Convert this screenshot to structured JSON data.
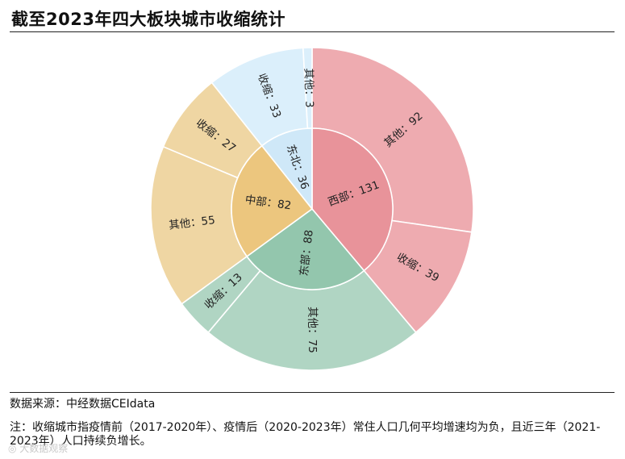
{
  "title": "截至2023年四大板块城市收缩统计",
  "source": "数据来源：中经数据CEIdata",
  "note": "注：收缩城市指疫情前（2017-2020年）、疫情后（2020-2023年）常住人口几何平均增速均为负，且近三年（2021-2023年）人口持续负增长。",
  "watermark": "◎ 大数据观察",
  "colors": {
    "西部": {
      "inner": "#e8939a",
      "outer": "#eeabb0"
    },
    "东部": {
      "inner": "#93c6ad",
      "outer": "#b0d5c3"
    },
    "中部": {
      "inner": "#ecc67e",
      "outer": "#efd6a3"
    },
    "东北": {
      "inner": "#cfe8f8",
      "outer": "#dbeffb"
    }
  },
  "chart_data": {
    "type": "sunburst",
    "title": "截至2023年四大板块城市收缩统计",
    "inner": [
      {
        "name": "西部",
        "value": 131,
        "label": "西部：131"
      },
      {
        "name": "东部",
        "value": 88,
        "label": "东部：88"
      },
      {
        "name": "中部",
        "value": 82,
        "label": "中部：82"
      },
      {
        "name": "东北",
        "value": 36,
        "label": "东北：36"
      }
    ],
    "outer": [
      {
        "parent": "西部",
        "name": "其他",
        "value": 92,
        "label": "其他：92"
      },
      {
        "parent": "西部",
        "name": "收缩",
        "value": 39,
        "label": "收缩：39"
      },
      {
        "parent": "东部",
        "name": "其他",
        "value": 75,
        "label": "其他：75"
      },
      {
        "parent": "东部",
        "name": "收缩",
        "value": 13,
        "label": "收缩：13"
      },
      {
        "parent": "中部",
        "name": "其他",
        "value": 55,
        "label": "其他：55"
      },
      {
        "parent": "中部",
        "name": "收缩",
        "value": 27,
        "label": "收缩：27"
      },
      {
        "parent": "东北",
        "name": "收缩",
        "value": 33,
        "label": "收缩：33"
      },
      {
        "parent": "东北",
        "name": "其他",
        "value": 3,
        "label": "其他：3"
      }
    ]
  }
}
